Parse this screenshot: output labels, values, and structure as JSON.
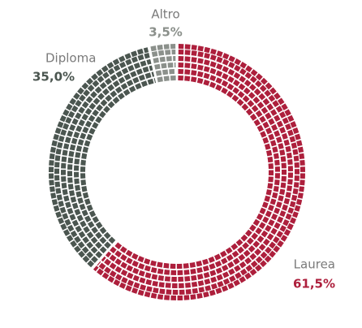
{
  "chart_data": {
    "type": "pie",
    "categories": [
      "Laurea",
      "Diploma",
      "Altro"
    ],
    "values": [
      61.5,
      35.0,
      3.5
    ],
    "value_labels": [
      "61,5%",
      "35,0%",
      "3,5%"
    ],
    "colors": [
      "#ad1f3c",
      "#4b5650",
      "#8b908b"
    ]
  }
}
